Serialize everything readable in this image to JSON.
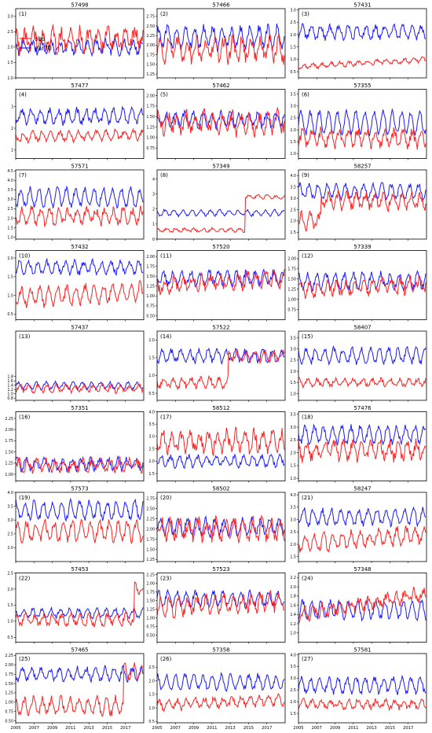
{
  "chart_data": {
    "type": "line",
    "x_range": [
      2005,
      2019
    ],
    "x_ticks": [
      "2005",
      "2007",
      "2009",
      "2011",
      "2013",
      "2015",
      "2017"
    ],
    "series_names": [
      "obs",
      "ear70"
    ],
    "colors": {
      "obs": "#ff2020",
      "ear70": "#1a1aff"
    },
    "legend_location": "upper-left of panel 1",
    "grid": false,
    "panels": [
      {
        "label": "(1)",
        "title": "57498",
        "ylim": [
          1.0,
          3.25
        ],
        "yticks": [
          "1.0",
          "1.5",
          "2.0",
          "2.5",
          "3.0"
        ],
        "obs": {
          "mean": 2.2,
          "amp": 0.3,
          "noise": 0.25,
          "trend": 0.1
        },
        "ear70": {
          "mean": 2.0,
          "amp": 0.18,
          "noise": 0.12
        }
      },
      {
        "label": "(2)",
        "title": "57466",
        "ylim": [
          1.15,
          2.95
        ],
        "yticks": [
          "1.25",
          "1.50",
          "1.75",
          "2.00",
          "2.25",
          "2.50",
          "2.75"
        ],
        "obs": {
          "mean": 1.9,
          "amp": 0.25,
          "noise": 0.18
        },
        "ear70": {
          "mean": 2.2,
          "amp": 0.25,
          "noise": 0.12
        }
      },
      {
        "label": "(3)",
        "title": "57431",
        "ylim": [
          0.25,
          3.05
        ],
        "yticks": [
          "0.5",
          "1.0",
          "1.5",
          "2.0",
          "2.5",
          "3.0"
        ],
        "obs": {
          "mean": 0.7,
          "amp": 0.08,
          "noise": 0.06,
          "trend": 0.3
        },
        "ear70": {
          "mean": 2.1,
          "amp": 0.25,
          "noise": 0.12
        }
      },
      {
        "label": "(4)",
        "title": "57477",
        "ylim": [
          0.6,
          3.8
        ],
        "yticks": [
          "1",
          "2",
          "3"
        ],
        "obs": {
          "mean": 1.6,
          "amp": 0.2,
          "noise": 0.12,
          "trend": 0.1
        },
        "ear70": {
          "mean": 2.55,
          "amp": 0.3,
          "noise": 0.15
        }
      },
      {
        "label": "(5)",
        "title": "57462",
        "ylim": [
          0.5,
          2.15
        ],
        "yticks": [
          "0.75",
          "1.00",
          "1.25",
          "1.50",
          "1.75",
          "2.00"
        ],
        "obs": {
          "mean": 1.35,
          "amp": 0.2,
          "noise": 0.16
        },
        "ear70": {
          "mean": 1.42,
          "amp": 0.15,
          "noise": 0.08
        }
      },
      {
        "label": "(6)",
        "title": "57355",
        "ylim": [
          0.8,
          3.7
        ],
        "yticks": [
          "1.0",
          "1.5",
          "2.0",
          "2.5",
          "3.0",
          "3.5"
        ],
        "obs": {
          "mean": 1.65,
          "amp": 0.3,
          "noise": 0.2
        },
        "ear70": {
          "mean": 2.3,
          "amp": 0.45,
          "noise": 0.12
        }
      },
      {
        "label": "(7)",
        "title": "57571",
        "ylim": [
          0.9,
          4.55
        ],
        "yticks": [
          "1.0",
          "1.5",
          "2.0",
          "2.5",
          "3.0",
          "3.5",
          "4.0",
          "4.5"
        ],
        "obs": {
          "mean": 2.1,
          "amp": 0.35,
          "noise": 0.25
        },
        "ear70": {
          "mean": 3.1,
          "amp": 0.45,
          "noise": 0.15
        }
      },
      {
        "label": "(8)",
        "title": "57349",
        "ylim": [
          0.0,
          4.6
        ],
        "yticks": [
          "0",
          "1",
          "2",
          "3",
          "4"
        ],
        "obs": {
          "mean": 0.6,
          "amp": 0.1,
          "noise": 0.08,
          "step_year": 2014.6,
          "step_to": 2.8
        },
        "ear70": {
          "mean": 1.75,
          "amp": 0.18,
          "noise": 0.08
        }
      },
      {
        "label": "(9)",
        "title": "58257",
        "ylim": [
          1.2,
          4.25
        ],
        "yticks": [
          "1.5",
          "2.0",
          "2.5",
          "3.0",
          "3.5",
          "4.0"
        ],
        "obs": {
          "mean": 2.9,
          "amp": 0.3,
          "noise": 0.2,
          "dip_until": 2007.5,
          "dip_to": 2.0
        },
        "ear70": {
          "mean": 3.3,
          "amp": 0.3,
          "noise": 0.12
        }
      },
      {
        "label": "(10)",
        "title": "57432",
        "ylim": [
          0.35,
          2.2
        ],
        "yticks": [
          "0.5",
          "1.0",
          "1.5",
          "2.0"
        ],
        "obs": {
          "mean": 0.95,
          "amp": 0.22,
          "noise": 0.1,
          "trend": 0.15
        },
        "ear70": {
          "mean": 1.75,
          "amp": 0.15,
          "noise": 0.08
        }
      },
      {
        "label": "(11)",
        "title": "57520",
        "ylim": [
          0.4,
          2.15
        ],
        "yticks": [
          "0.50",
          "0.75",
          "1.00",
          "1.25",
          "1.50",
          "1.75",
          "2.00"
        ],
        "obs": {
          "mean": 1.25,
          "amp": 0.15,
          "noise": 0.12,
          "trend": 0.2
        },
        "ear70": {
          "mean": 1.45,
          "amp": 0.15,
          "noise": 0.08
        }
      },
      {
        "label": "(12)",
        "title": "57339",
        "ylim": [
          0.5,
          2.2
        ],
        "yticks": [
          "0.75",
          "1.00",
          "1.25",
          "1.50",
          "1.75",
          "2.00"
        ],
        "obs": {
          "mean": 1.25,
          "amp": 0.15,
          "noise": 0.12,
          "trend": 0.1
        },
        "ear70": {
          "mean": 1.45,
          "amp": 0.18,
          "noise": 0.08
        }
      },
      {
        "label": "(13)",
        "title": "57437",
        "ylim": [
          0.7,
          3.9
        ],
        "yticks": [
          "0.8",
          "1.0",
          "1.2",
          "1.4",
          "1.6",
          "1.8"
        ],
        "obs": {
          "mean": 1.25,
          "amp": 0.15,
          "noise": 0.1
        },
        "ear70": {
          "mean": 1.38,
          "amp": 0.15,
          "noise": 0.06
        }
      },
      {
        "label": "(14)",
        "title": "57522",
        "ylim": [
          0.3,
          2.25
        ],
        "yticks": [
          "0.5",
          "1.0",
          "1.5",
          "2.0"
        ],
        "obs": {
          "mean": 0.8,
          "amp": 0.12,
          "noise": 0.08,
          "step_year": 2012.8,
          "step_to": 1.55
        },
        "ear70": {
          "mean": 1.55,
          "amp": 0.15,
          "noise": 0.08
        }
      },
      {
        "label": "(15)",
        "title": "58407",
        "ylim": [
          0.7,
          3.8
        ],
        "yticks": [
          "1.0",
          "1.5",
          "2.0",
          "2.5",
          "3.0",
          "3.5"
        ],
        "obs": {
          "mean": 1.5,
          "amp": 0.15,
          "noise": 0.1
        },
        "ear70": {
          "mean": 2.7,
          "amp": 0.3,
          "noise": 0.12
        }
      },
      {
        "label": "(16)",
        "title": "57351",
        "ylim": [
          0.85,
          2.4
        ],
        "yticks": [
          "1.00",
          "1.25",
          "1.50",
          "1.75",
          "2.00",
          "2.25"
        ],
        "obs": {
          "mean": 1.2,
          "amp": 0.1,
          "noise": 0.1
        },
        "ear70": {
          "mean": 1.22,
          "amp": 0.12,
          "noise": 0.06
        }
      },
      {
        "label": "(17)",
        "title": "58512",
        "ylim": [
          1.2,
          4.0
        ],
        "yticks": [
          "1.5",
          "2.0",
          "2.5",
          "3.0",
          "3.5",
          "4.0"
        ],
        "obs": {
          "mean": 2.8,
          "amp": 0.35,
          "noise": 0.25
        },
        "ear70": {
          "mean": 2.0,
          "amp": 0.2,
          "noise": 0.1
        }
      },
      {
        "label": "(18)",
        "title": "57476",
        "ylim": [
          0.9,
          3.6
        ],
        "yticks": [
          "1.0",
          "1.5",
          "2.0",
          "2.5",
          "3.0",
          "3.5"
        ],
        "obs": {
          "mean": 2.1,
          "amp": 0.3,
          "noise": 0.2
        },
        "ear70": {
          "mean": 2.7,
          "amp": 0.3,
          "noise": 0.12
        }
      },
      {
        "label": "(19)",
        "title": "57573",
        "ylim": [
          1.5,
          4.0
        ],
        "yticks": [
          "2.0",
          "2.5",
          "3.0",
          "3.5",
          "4.0"
        ],
        "obs": {
          "mean": 2.6,
          "amp": 0.3,
          "noise": 0.15
        },
        "ear70": {
          "mean": 3.35,
          "amp": 0.3,
          "noise": 0.12
        }
      },
      {
        "label": "(20)",
        "title": "58502",
        "ylim": [
          1.2,
          2.9
        ],
        "yticks": [
          "1.25",
          "1.50",
          "1.75",
          "2.00",
          "2.25",
          "2.50",
          "2.75"
        ],
        "obs": {
          "mean": 2.0,
          "amp": 0.2,
          "noise": 0.15
        },
        "ear70": {
          "mean": 2.05,
          "amp": 0.18,
          "noise": 0.08
        }
      },
      {
        "label": "(21)",
        "title": "58247",
        "ylim": [
          1.3,
          4.1
        ],
        "yticks": [
          "1.5",
          "2.0",
          "2.5",
          "3.0",
          "3.5",
          "4.0"
        ],
        "obs": {
          "mean": 2.0,
          "amp": 0.3,
          "noise": 0.15,
          "trend": 0.4
        },
        "ear70": {
          "mean": 3.1,
          "amp": 0.3,
          "noise": 0.12
        }
      },
      {
        "label": "(22)",
        "title": "57453",
        "ylim": [
          0.35,
          2.5
        ],
        "yticks": [
          "0.5",
          "1.0",
          "1.5",
          "2.0",
          "2.5"
        ],
        "obs": {
          "mean": 1.05,
          "amp": 0.15,
          "noise": 0.1,
          "step_year": 2018.0,
          "step_to": 2.0
        },
        "ear70": {
          "mean": 1.25,
          "amp": 0.12,
          "noise": 0.06
        }
      },
      {
        "label": "(23)",
        "title": "57523",
        "ylim": [
          0.3,
          2.3
        ],
        "yticks": [
          "0.50",
          "0.75",
          "1.00",
          "1.25",
          "1.50",
          "1.75",
          "2.00",
          "2.25"
        ],
        "obs": {
          "mean": 1.3,
          "amp": 0.2,
          "noise": 0.15,
          "trend": 0.2
        },
        "ear70": {
          "mean": 1.55,
          "amp": 0.2,
          "noise": 0.08
        }
      },
      {
        "label": "(24)",
        "title": "57348",
        "ylim": [
          0.8,
          2.3
        ],
        "yticks": [
          "1.0",
          "1.2",
          "1.4",
          "1.6",
          "1.8",
          "2.0",
          "2.2"
        ],
        "obs": {
          "mean": 1.4,
          "amp": 0.1,
          "noise": 0.1,
          "trend": 0.45
        },
        "ear70": {
          "mean": 1.5,
          "amp": 0.18,
          "noise": 0.06
        }
      },
      {
        "label": "(25)",
        "title": "57465",
        "ylim": [
          0.45,
          2.3
        ],
        "yticks": [
          "0.50",
          "0.75",
          "1.00",
          "1.25",
          "1.50",
          "1.75",
          "2.00",
          "2.25"
        ],
        "obs": {
          "mean": 0.9,
          "amp": 0.2,
          "noise": 0.1,
          "step_year": 2016.8,
          "step_to": 1.8
        },
        "ear70": {
          "mean": 1.75,
          "amp": 0.15,
          "noise": 0.08
        }
      },
      {
        "label": "(26)",
        "title": "57358",
        "ylim": [
          0.45,
          3.0
        ],
        "yticks": [
          "0.5",
          "1.0",
          "1.5",
          "2.0",
          "2.5"
        ],
        "obs": {
          "mean": 1.1,
          "amp": 0.15,
          "noise": 0.1,
          "trend": 0.2
        },
        "ear70": {
          "mean": 1.95,
          "amp": 0.25,
          "noise": 0.1
        }
      },
      {
        "label": "(27)",
        "title": "57581",
        "ylim": [
          1.1,
          4.05
        ],
        "yticks": [
          "1.5",
          "2.0",
          "2.5",
          "3.0",
          "3.5",
          "4.0"
        ],
        "obs": {
          "mean": 1.9,
          "amp": 0.15,
          "noise": 0.12
        },
        "ear70": {
          "mean": 2.7,
          "amp": 0.3,
          "noise": 0.12
        }
      }
    ]
  }
}
